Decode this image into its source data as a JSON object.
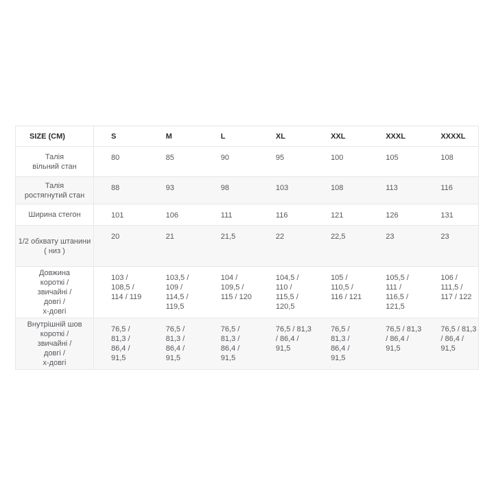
{
  "table": {
    "columns": [
      "SIZE (CM)",
      "S",
      "M",
      "L",
      "XL",
      "XXL",
      "XXXL",
      "XXXXL"
    ],
    "rows": [
      {
        "label": "Талія\nвільний стан",
        "values": [
          "80",
          "85",
          "90",
          "95",
          "100",
          "105",
          "108"
        ]
      },
      {
        "label": "Талія\nростягнутий стан",
        "values": [
          "88",
          "93",
          "98",
          "103",
          "108",
          "113",
          "116"
        ]
      },
      {
        "label": "Ширина стегон",
        "values": [
          "101",
          "106",
          "111",
          "116",
          "121",
          "126",
          "131"
        ]
      },
      {
        "label": "1/2 обхвату штанини\n( низ )",
        "values": [
          "20",
          "21",
          "21,5",
          "22",
          "22,5",
          "23",
          "23"
        ]
      },
      {
        "label": "Довжина\nкороткі /\nзвичайні /\nдовгі /\nх-довгі",
        "values": [
          "103 /\n108,5 /\n114 / 119",
          "103,5 /\n109 /\n114,5 /\n119,5",
          "104 /\n109,5 /\n115 / 120",
          "104,5 /\n110 /\n115,5 /\n120,5",
          "105 /\n110,5 /\n116 / 121",
          "105,5 /\n111 /\n116,5 /\n121,5",
          "106 /\n111,5 /\n117 / 122"
        ]
      },
      {
        "label": "Внутрішній шов\nкороткі /\nзвичайні /\nдовгі /\nх-довгі",
        "values": [
          "76,5 /\n81,3 /\n86,4 /\n91,5",
          "76,5 /\n81,3 /\n86,4 /\n91,5",
          "76,5 /\n81,3 /\n86,4 /\n91,5",
          "76,5 / 81,3\n/ 86,4 /\n91,5",
          "76,5 /\n81,3 /\n86,4 /\n91,5",
          "76,5 / 81,3\n/ 86,4 /\n91,5",
          "76,5 / 81,3\n/ 86,4 /\n91,5"
        ]
      }
    ]
  },
  "colors": {
    "background": "#ffffff",
    "header_text": "#2b2b2f",
    "body_text": "#55565a",
    "border": "#e7e7e8",
    "row_stripe": "#f7f7f8"
  }
}
